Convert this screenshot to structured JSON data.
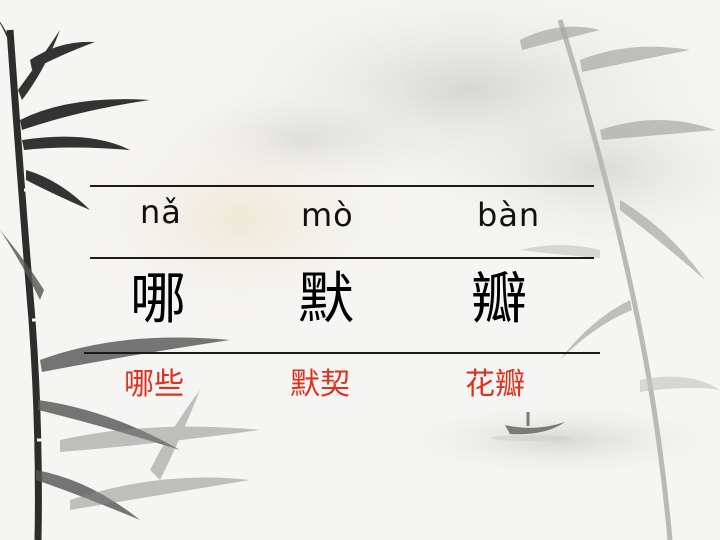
{
  "rows": {
    "pinyin": [
      "nǎ",
      "mò",
      "bàn"
    ],
    "characters": [
      "哪",
      "默",
      "瓣"
    ],
    "words": [
      "哪些",
      "默契",
      "花瓣"
    ]
  },
  "colors": {
    "word_text": "#e0301e",
    "rule": "#1a1a1a"
  }
}
